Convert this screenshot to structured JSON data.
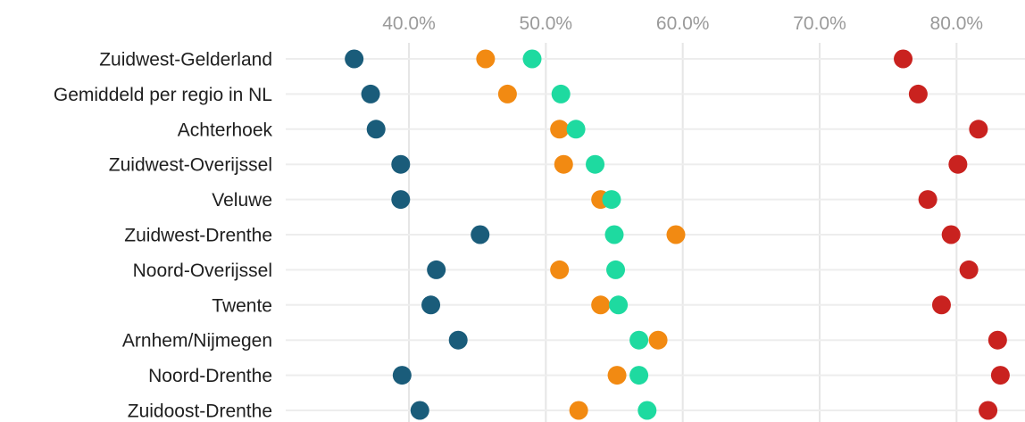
{
  "chart_data": {
    "type": "scatter",
    "orientation": "horizontal-dot-plot",
    "title": "",
    "xlabel": "",
    "ylabel": "",
    "xlim": [
      31.0,
      85.0
    ],
    "x_ticks": [
      40,
      50,
      60,
      70,
      80
    ],
    "x_tick_labels": [
      "40.0%",
      "50.0%",
      "60.0%",
      "70.0%",
      "80.0%"
    ],
    "grid": true,
    "legend": "none",
    "categories": [
      "Zuidwest-Gelderland",
      "Gemiddeld per regio in NL",
      "Achterhoek",
      "Zuidwest-Overijssel",
      "Veluwe",
      "Zuidwest-Drenthe",
      "Noord-Overijssel",
      "Twente",
      "Arnhem/Nijmegen",
      "Noord-Drenthe",
      "Zuidoost-Drenthe"
    ],
    "series": [
      {
        "color": "#1a5c7a",
        "values": [
          36.0,
          37.2,
          37.6,
          39.4,
          39.4,
          45.2,
          42.0,
          41.6,
          43.6,
          39.5,
          40.8
        ]
      },
      {
        "color": "#f28a12",
        "values": [
          45.6,
          47.2,
          51.0,
          51.3,
          54.0,
          59.5,
          51.0,
          54.0,
          58.2,
          55.2,
          52.4
        ]
      },
      {
        "color": "#1edaa0",
        "values": [
          49.0,
          51.1,
          52.2,
          53.6,
          54.8,
          55.0,
          55.1,
          55.3,
          56.8,
          56.8,
          57.4
        ]
      },
      {
        "color": "#c9221f",
        "values": [
          76.1,
          77.2,
          81.6,
          80.1,
          77.9,
          79.6,
          80.9,
          78.9,
          83.0,
          83.2,
          82.3
        ]
      }
    ]
  }
}
